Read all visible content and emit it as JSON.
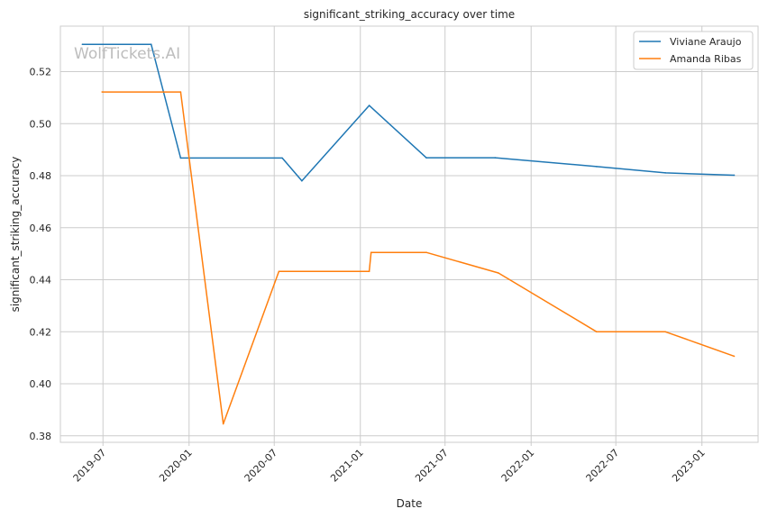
{
  "chart_data": {
    "type": "line",
    "title": "significant_striking_accuracy over time",
    "xlabel": "Date",
    "ylabel": "significant_striking_accuracy",
    "watermark": "WolfTickets.AI",
    "x_ticks": [
      "2019-07",
      "2020-01",
      "2020-07",
      "2021-01",
      "2021-07",
      "2022-01",
      "2022-07",
      "2023-01"
    ],
    "y_ticks": [
      "0.38",
      "0.40",
      "0.42",
      "0.44",
      "0.46",
      "0.48",
      "0.50",
      "0.52"
    ],
    "xlim": [
      "2019-04-01",
      "2023-05-01"
    ],
    "ylim": [
      0.3775,
      0.5375
    ],
    "grid": true,
    "legend_position": "top-right",
    "series": [
      {
        "name": "Viviane Araujo",
        "color": "#1f77b4",
        "points": [
          [
            "2019-05-18",
            0.5305
          ],
          [
            "2019-10-12",
            0.5305
          ],
          [
            "2019-12-14",
            0.4868
          ],
          [
            "2020-07-18",
            0.4868
          ],
          [
            "2020-08-29",
            0.478
          ],
          [
            "2021-01-20",
            0.507
          ],
          [
            "2021-05-22",
            0.4869
          ],
          [
            "2021-10-16",
            0.4869
          ],
          [
            "2022-05-21",
            0.4835
          ],
          [
            "2022-10-15",
            0.4811
          ],
          [
            "2023-03-11",
            0.4802
          ]
        ]
      },
      {
        "name": "Amanda Ribas",
        "color": "#ff7f0e",
        "points": [
          [
            "2019-06-29",
            0.5122
          ],
          [
            "2019-12-14",
            0.5122
          ],
          [
            "2020-03-14",
            0.3846
          ],
          [
            "2020-07-11",
            0.4432
          ],
          [
            "2021-01-20",
            0.4432
          ],
          [
            "2021-01-24",
            0.4505
          ],
          [
            "2021-05-22",
            0.4505
          ],
          [
            "2021-10-23",
            0.4426
          ],
          [
            "2022-05-21",
            0.42
          ],
          [
            "2022-10-15",
            0.42
          ],
          [
            "2023-03-11",
            0.4106
          ]
        ]
      }
    ]
  }
}
